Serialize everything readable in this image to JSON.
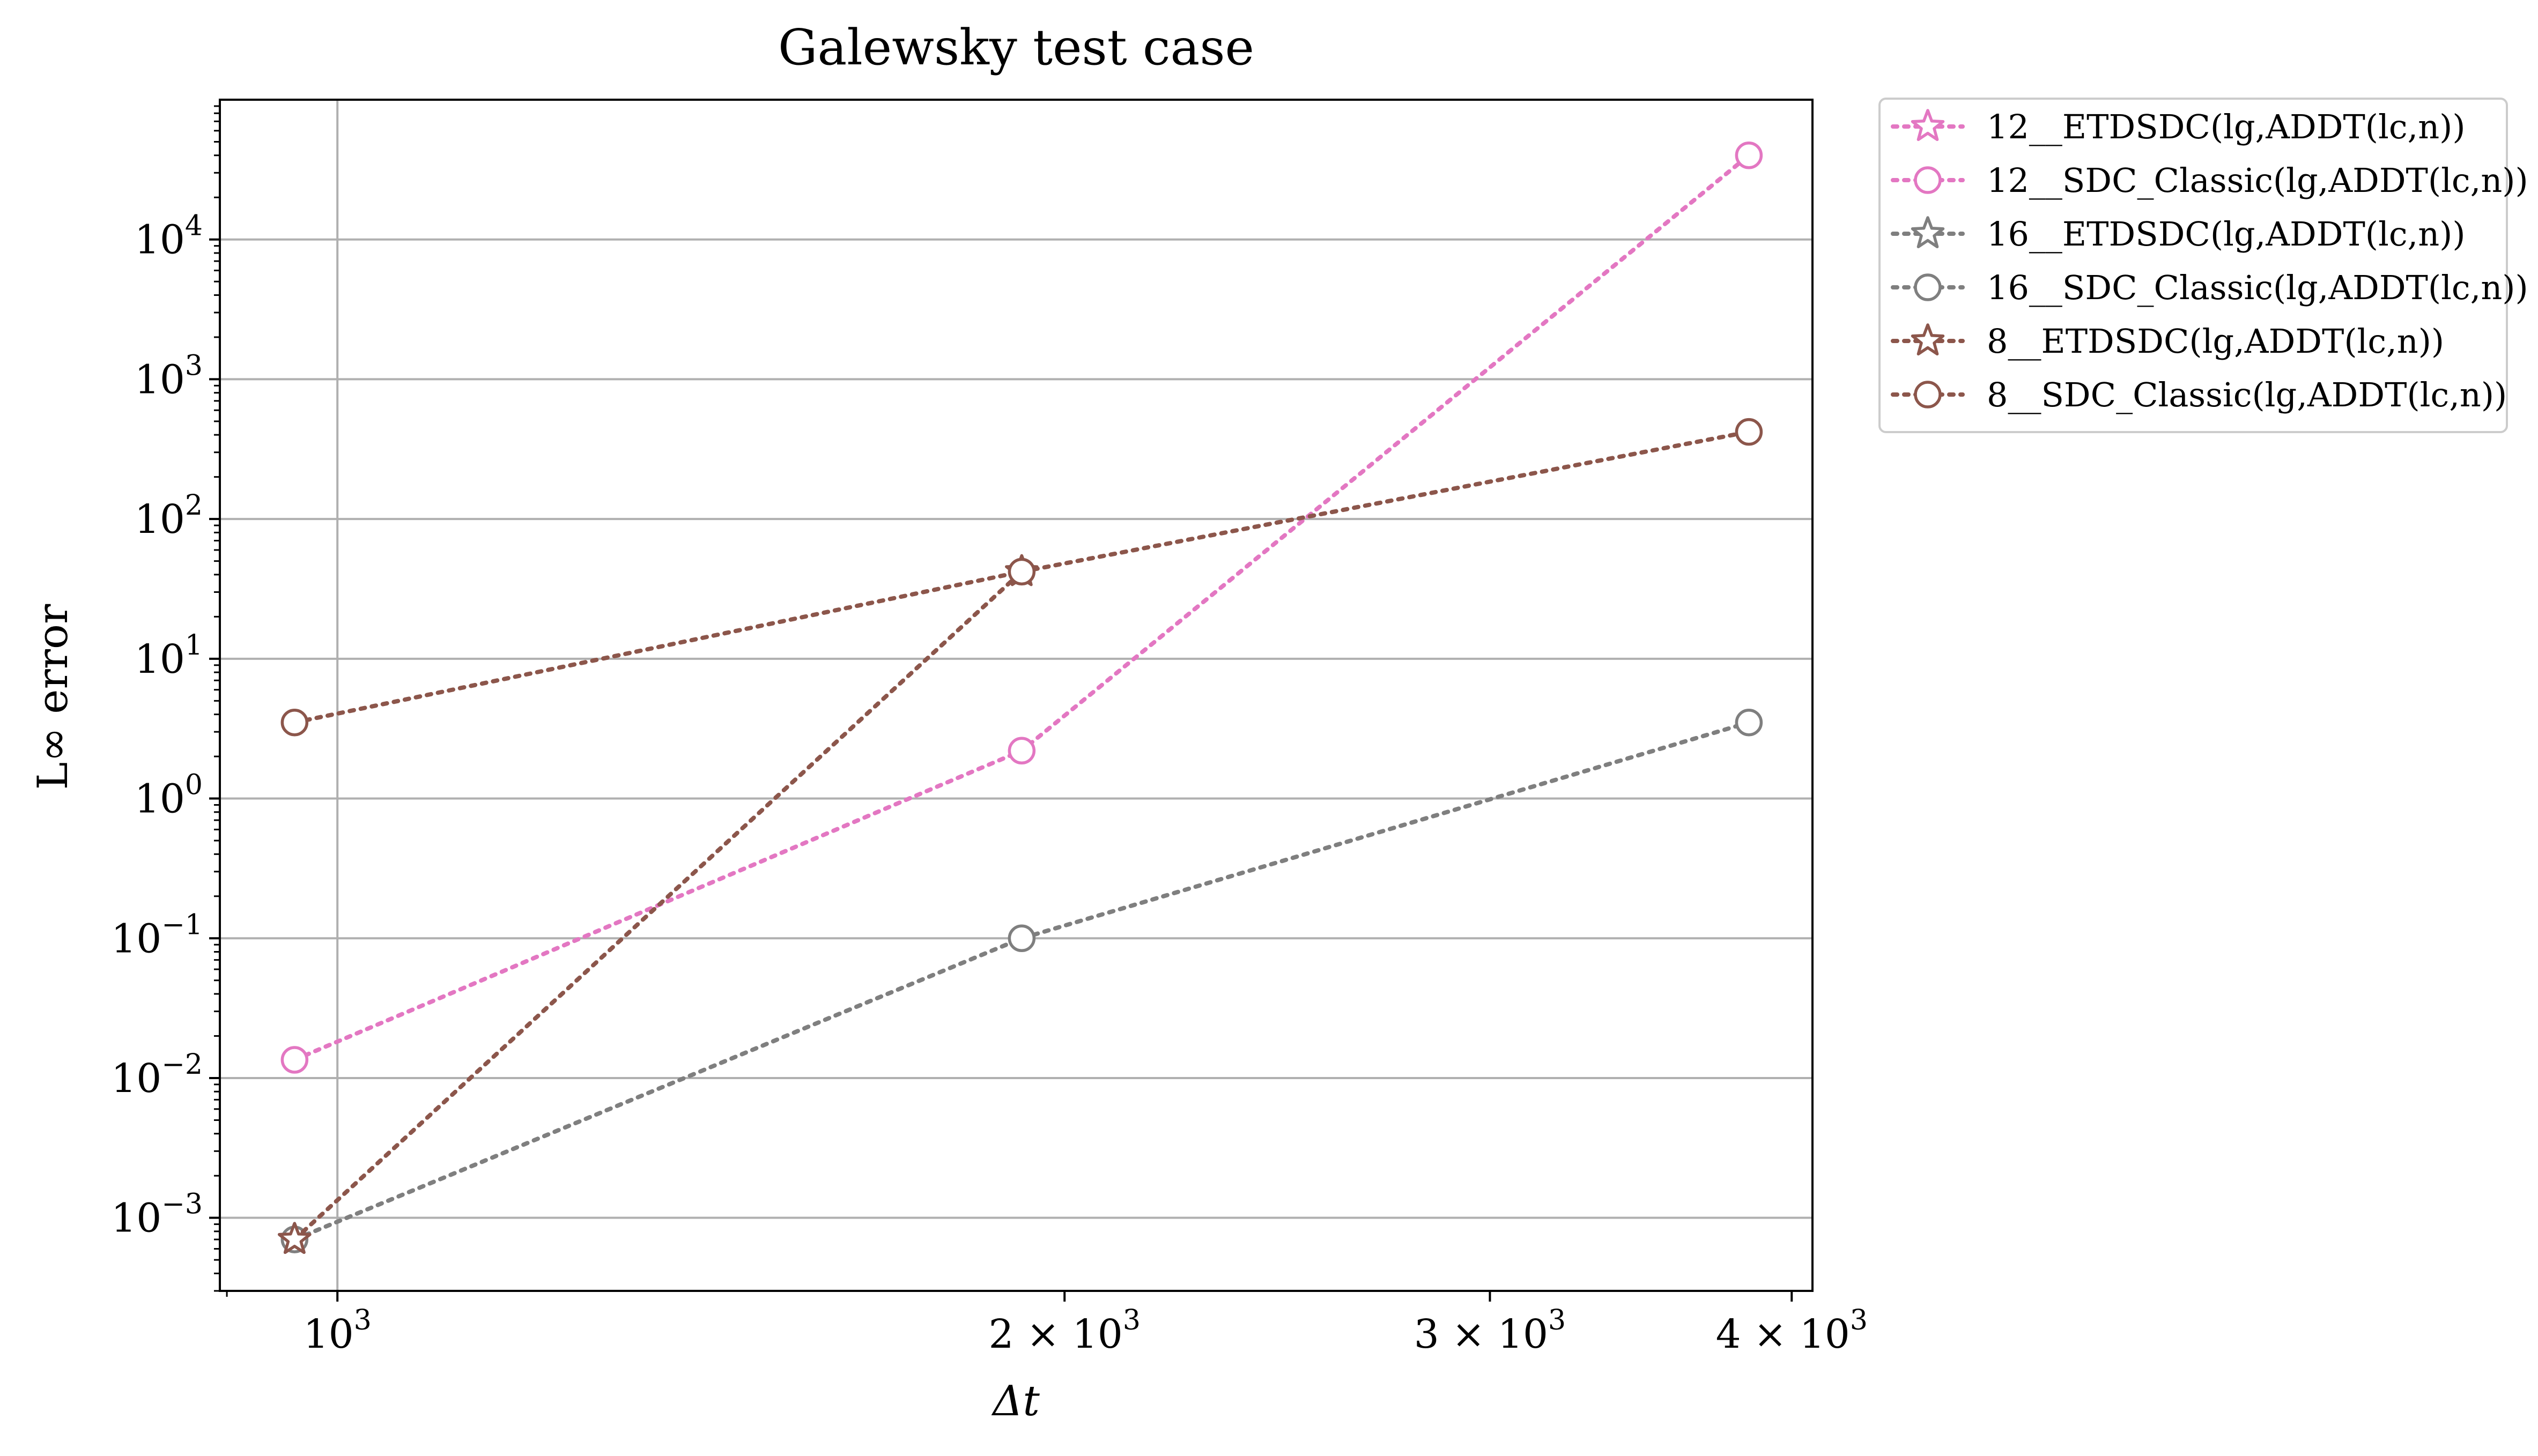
{
  "chart_data": {
    "type": "line",
    "title": "Galewsky test case",
    "xlabel": "Δt",
    "ylabel": "L∞ error",
    "x_scale": "log",
    "y_scale": "log",
    "xlim": [
      894,
      4080
    ],
    "ylim": [
      0.0003,
      100000
    ],
    "grid": true,
    "legend_position": "outside-right-top",
    "x_ticks": [
      {
        "value": 1000,
        "base": "10",
        "exp": "3"
      },
      {
        "value": 2000,
        "base": "2 × 10",
        "exp": "3"
      },
      {
        "value": 3000,
        "base": "3 × 10",
        "exp": "3"
      },
      {
        "value": 4000,
        "base": "4 × 10",
        "exp": "3"
      }
    ],
    "y_ticks": [
      {
        "value": 0.001,
        "base": "10",
        "exp": "−3"
      },
      {
        "value": 0.01,
        "base": "10",
        "exp": "−2"
      },
      {
        "value": 0.1,
        "base": "10",
        "exp": "−1"
      },
      {
        "value": 1,
        "base": "10",
        "exp": "0"
      },
      {
        "value": 10,
        "base": "10",
        "exp": "1"
      },
      {
        "value": 100,
        "base": "10",
        "exp": "2"
      },
      {
        "value": 1000,
        "base": "10",
        "exp": "3"
      },
      {
        "value": 10000,
        "base": "10",
        "exp": "4"
      }
    ],
    "x": [
      960,
      1920,
      3840
    ],
    "series": [
      {
        "name": "12__ETDSDC(lg,ADDT(lc,n))",
        "color": "#e377c2",
        "marker": "star",
        "values": [
          0.0007,
          null,
          null
        ]
      },
      {
        "name": "12__SDC_Classic(lg,ADDT(lc,n))",
        "color": "#e377c2",
        "marker": "circle",
        "values": [
          0.0135,
          2.2,
          40000
        ]
      },
      {
        "name": "16__ETDSDC(lg,ADDT(lc,n))",
        "color": "#7f7f7f",
        "marker": "star",
        "values": [
          0.0007,
          null,
          null
        ]
      },
      {
        "name": "16__SDC_Classic(lg,ADDT(lc,n))",
        "color": "#7f7f7f",
        "marker": "circle",
        "values": [
          0.0007,
          0.1,
          3.5
        ]
      },
      {
        "name": "8__ETDSDC(lg,ADDT(lc,n))",
        "color": "#8c564b",
        "marker": "star",
        "values": [
          0.0007,
          42,
          null
        ]
      },
      {
        "name": "8__SDC_Classic(lg,ADDT(lc,n))",
        "color": "#8c564b",
        "marker": "circle",
        "values": [
          3.5,
          42,
          420
        ]
      }
    ]
  }
}
